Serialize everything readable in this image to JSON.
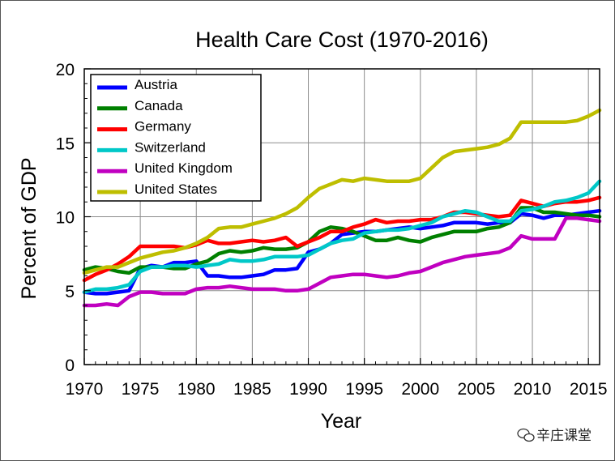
{
  "chart_data": {
    "type": "line",
    "title": "Health Care Cost (1970-2016)",
    "xlabel": "Year",
    "ylabel": "Percent of GDP",
    "xlim": [
      1970,
      2016
    ],
    "ylim": [
      0,
      20
    ],
    "xticks": [
      1970,
      1975,
      1980,
      1985,
      1990,
      1995,
      2000,
      2005,
      2010,
      2015
    ],
    "yticks": [
      0,
      5,
      10,
      15,
      20
    ],
    "grid": true,
    "legend_position": "top-left",
    "x": [
      1970,
      1971,
      1972,
      1973,
      1974,
      1975,
      1976,
      1977,
      1978,
      1979,
      1980,
      1981,
      1982,
      1983,
      1984,
      1985,
      1986,
      1987,
      1988,
      1989,
      1990,
      1991,
      1992,
      1993,
      1994,
      1995,
      1996,
      1997,
      1998,
      1999,
      2000,
      2001,
      2002,
      2003,
      2004,
      2005,
      2006,
      2007,
      2008,
      2009,
      2010,
      2011,
      2012,
      2013,
      2014,
      2015,
      2016
    ],
    "series": [
      {
        "name": "Austria",
        "color": "#0000ff",
        "values": [
          4.9,
          4.8,
          4.8,
          4.9,
          5.0,
          6.5,
          6.7,
          6.6,
          6.9,
          6.9,
          7.0,
          6.0,
          6.0,
          5.9,
          5.9,
          6.0,
          6.1,
          6.4,
          6.4,
          6.5,
          7.6,
          7.8,
          8.2,
          8.8,
          8.9,
          9.0,
          9.0,
          9.1,
          9.2,
          9.3,
          9.2,
          9.3,
          9.4,
          9.6,
          9.6,
          9.6,
          9.5,
          9.6,
          9.6,
          10.2,
          10.1,
          9.9,
          10.1,
          10.1,
          10.2,
          10.3,
          10.4
        ]
      },
      {
        "name": "Canada",
        "color": "#008000",
        "values": [
          6.4,
          6.6,
          6.5,
          6.3,
          6.2,
          6.6,
          6.6,
          6.6,
          6.5,
          6.5,
          6.8,
          7.0,
          7.5,
          7.7,
          7.6,
          7.7,
          7.9,
          7.8,
          7.8,
          7.9,
          8.3,
          9.0,
          9.3,
          9.2,
          9.0,
          8.7,
          8.4,
          8.4,
          8.6,
          8.4,
          8.3,
          8.6,
          8.8,
          9.0,
          9.0,
          9.0,
          9.2,
          9.3,
          9.6,
          10.6,
          10.6,
          10.3,
          10.3,
          10.2,
          10.1,
          10.1,
          10.0
        ]
      },
      {
        "name": "Germany",
        "color": "#ff0000",
        "values": [
          5.7,
          6.1,
          6.4,
          6.8,
          7.3,
          8.0,
          8.0,
          8.0,
          8.0,
          7.9,
          8.1,
          8.4,
          8.2,
          8.2,
          8.3,
          8.4,
          8.3,
          8.4,
          8.6,
          8.0,
          8.3,
          8.6,
          9.0,
          9.0,
          9.3,
          9.5,
          9.8,
          9.6,
          9.7,
          9.7,
          9.8,
          9.8,
          10.0,
          10.3,
          10.3,
          10.2,
          10.1,
          10.0,
          10.1,
          11.1,
          10.9,
          10.7,
          10.9,
          11.0,
          11.0,
          11.1,
          11.3
        ]
      },
      {
        "name": "Switzerland",
        "color": "#00c8c8",
        "values": [
          4.9,
          5.1,
          5.1,
          5.2,
          5.4,
          6.3,
          6.6,
          6.6,
          6.7,
          6.7,
          6.6,
          6.7,
          6.8,
          7.1,
          7.0,
          7.0,
          7.1,
          7.3,
          7.3,
          7.3,
          7.4,
          7.8,
          8.2,
          8.4,
          8.5,
          8.9,
          9.0,
          9.1,
          9.1,
          9.2,
          9.4,
          9.6,
          10.0,
          10.2,
          10.4,
          10.3,
          10.0,
          9.7,
          9.7,
          10.4,
          10.5,
          10.7,
          11.0,
          11.1,
          11.3,
          11.6,
          12.4
        ]
      },
      {
        "name": "United Kingdom",
        "color": "#c000c0",
        "values": [
          4.0,
          4.0,
          4.1,
          4.0,
          4.6,
          4.9,
          4.9,
          4.8,
          4.8,
          4.8,
          5.1,
          5.2,
          5.2,
          5.3,
          5.2,
          5.1,
          5.1,
          5.1,
          5.0,
          5.0,
          5.1,
          5.5,
          5.9,
          6.0,
          6.1,
          6.1,
          6.0,
          5.9,
          6.0,
          6.2,
          6.3,
          6.6,
          6.9,
          7.1,
          7.3,
          7.4,
          7.5,
          7.6,
          7.9,
          8.7,
          8.5,
          8.5,
          8.5,
          9.9,
          9.9,
          9.8,
          9.7
        ]
      },
      {
        "name": "United States",
        "color": "#bebe00",
        "values": [
          6.2,
          6.4,
          6.6,
          6.6,
          6.9,
          7.2,
          7.4,
          7.6,
          7.7,
          7.9,
          8.2,
          8.6,
          9.2,
          9.3,
          9.3,
          9.5,
          9.7,
          9.9,
          10.2,
          10.6,
          11.3,
          11.9,
          12.2,
          12.5,
          12.4,
          12.6,
          12.5,
          12.4,
          12.4,
          12.4,
          12.6,
          13.3,
          14.0,
          14.4,
          14.5,
          14.6,
          14.7,
          14.9,
          15.3,
          16.4,
          16.4,
          16.4,
          16.4,
          16.4,
          16.5,
          16.8,
          17.2
        ]
      }
    ]
  },
  "watermark": {
    "text": "辛庄课堂"
  }
}
